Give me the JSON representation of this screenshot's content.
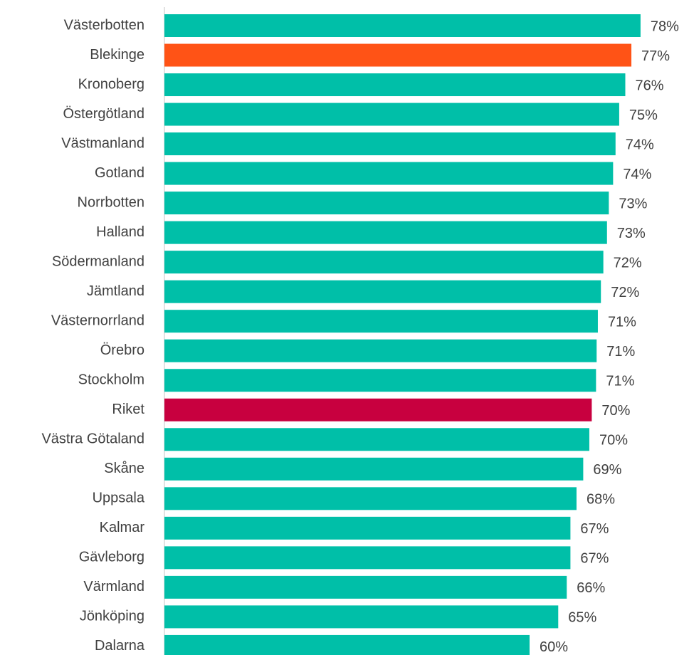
{
  "chart_data": {
    "type": "hbar",
    "categories": [
      "Västerbotten",
      "Blekinge",
      "Kronoberg",
      "Östergötland",
      "Västmanland",
      "Gotland",
      "Norrbotten",
      "Halland",
      "Södermanland",
      "Jämtland",
      "Västernorrland",
      "Örebro",
      "Stockholm",
      "Riket",
      "Västra Götaland",
      "Skåne",
      "Uppsala",
      "Kalmar",
      "Gävleborg",
      "Värmland",
      "Jönköping",
      "Dalarna"
    ],
    "values": [
      78.1,
      76.6,
      75.6,
      74.6,
      74.0,
      73.6,
      72.9,
      72.6,
      72.0,
      71.6,
      71.1,
      70.9,
      70.8,
      70.1,
      69.7,
      68.7,
      67.6,
      66.6,
      66.6,
      66.0,
      64.6,
      59.9
    ],
    "value_labels": [
      "78%",
      "77%",
      "76%",
      "75%",
      "74%",
      "74%",
      "73%",
      "73%",
      "72%",
      "72%",
      "71%",
      "71%",
      "71%",
      "70%",
      "70%",
      "69%",
      "68%",
      "67%",
      "67%",
      "66%",
      "65%",
      "60%"
    ],
    "colors": [
      "#00bfa8",
      "#ff5316",
      "#00bfa8",
      "#00bfa8",
      "#00bfa8",
      "#00bfa8",
      "#00bfa8",
      "#00bfa8",
      "#00bfa8",
      "#00bfa8",
      "#00bfa8",
      "#00bfa8",
      "#00bfa8",
      "#c8003f",
      "#00bfa8",
      "#00bfa8",
      "#00bfa8",
      "#00bfa8",
      "#00bfa8",
      "#00bfa8",
      "#00bfa8",
      "#00bfa8"
    ],
    "xlim": [
      0,
      85
    ]
  }
}
